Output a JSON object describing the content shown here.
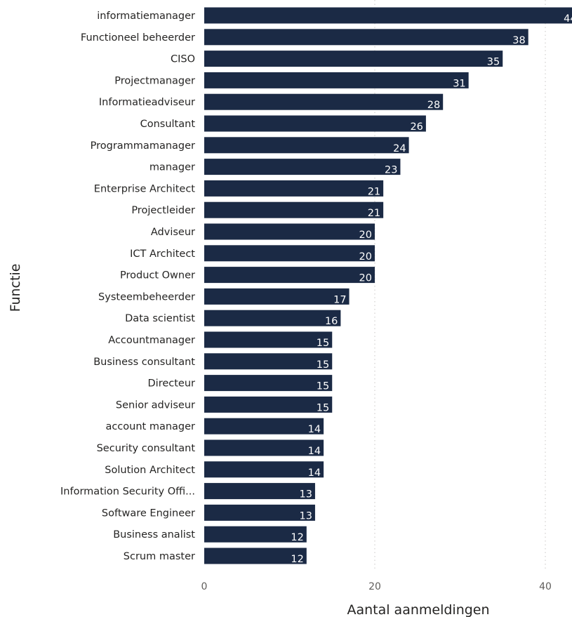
{
  "chart_data": {
    "type": "bar",
    "orientation": "horizontal",
    "xlabel": "Aantal aanmeldingen",
    "ylabel": "Functie",
    "xlim": [
      0,
      44
    ],
    "xticks": [
      0,
      20,
      40
    ],
    "grid": true,
    "bar_color": "#1b2a45",
    "categories": [
      "informatiemanager",
      "Functioneel beheerder",
      "CISO",
      "Projectmanager",
      "Informatieadviseur",
      "Consultant",
      "Programmamanager",
      "manager",
      "Enterprise Architect",
      "Projectleider",
      "Adviseur",
      "ICT Architect",
      "Product Owner",
      "Systeembeheerder",
      "Data scientist",
      "Accountmanager",
      "Business consultant",
      "Directeur",
      "Senior adviseur",
      "account manager",
      "Security consultant",
      "Solution Architect",
      "Information Security Offi...",
      "Software Engineer",
      "Business analist",
      "Scrum master"
    ],
    "values": [
      44,
      38,
      35,
      31,
      28,
      26,
      24,
      23,
      21,
      21,
      20,
      20,
      20,
      17,
      16,
      15,
      15,
      15,
      15,
      14,
      14,
      14,
      13,
      13,
      12,
      12
    ]
  }
}
